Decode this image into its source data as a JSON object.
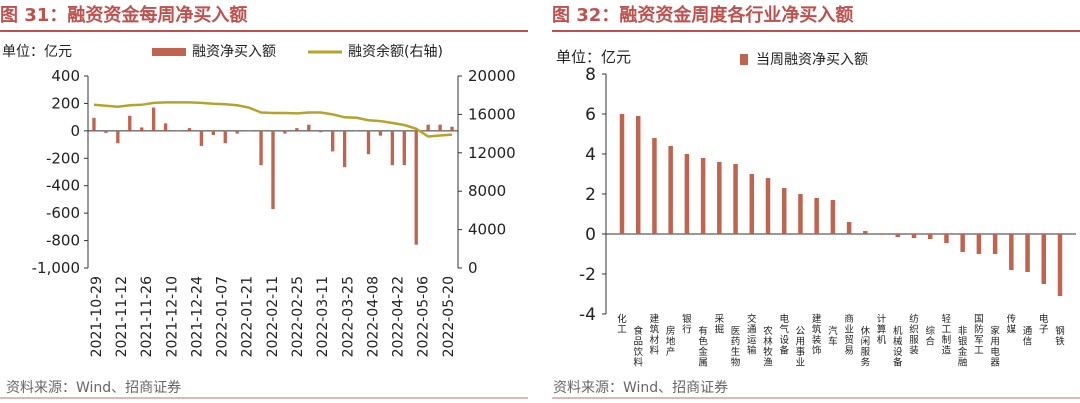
{
  "left_panel": {
    "title": "图 31：融资资金每周净买入额",
    "source": "资料来源：Wind、招商证券"
  },
  "right_panel": {
    "title": "图 32：融资资金周度各行业净买入额",
    "source": "资料来源：Wind、招商证券"
  },
  "colors": {
    "bar": "#c0644f",
    "line": "#b8a32a",
    "accent": "#c0504d"
  },
  "chart_data": [
    {
      "type": "bar+line",
      "unit_label": "单位：亿元",
      "legend": {
        "bar": "融资净买入额",
        "line": "融资余额(右轴)"
      },
      "ylim_left": [
        -1000,
        400
      ],
      "yticks_left": [
        "400",
        "200",
        "0",
        "-200",
        "-400",
        "-600",
        "-800",
        "-1,000"
      ],
      "ylim_right": [
        0,
        20000
      ],
      "yticks_right": [
        "20000",
        "16000",
        "12000",
        "8000",
        "4000",
        "0"
      ],
      "xtick_labels": [
        "2021-10-29",
        "2021-11-12",
        "2021-11-26",
        "2021-12-10",
        "2021-12-24",
        "2022-01-07",
        "2022-01-21",
        "2022-02-11",
        "2022-02-25",
        "2022-03-11",
        "2022-03-25",
        "2022-04-08",
        "2022-04-22",
        "2022-05-06",
        "2022-05-20"
      ],
      "bars": [
        95,
        -15,
        -90,
        110,
        25,
        170,
        55,
        0,
        20,
        -110,
        -30,
        -90,
        -20,
        0,
        -250,
        -570,
        -20,
        20,
        45,
        -10,
        -150,
        -265,
        0,
        -170,
        -35,
        -250,
        -250,
        -830,
        45,
        45,
        30
      ],
      "balance": [
        17000,
        16900,
        16800,
        16950,
        17000,
        17200,
        17250,
        17250,
        17250,
        17200,
        17100,
        17050,
        16950,
        16700,
        16200,
        16150,
        16150,
        16100,
        16200,
        16200,
        16000,
        15700,
        15650,
        15400,
        15300,
        15100,
        14900,
        14500,
        13700,
        13800,
        13900
      ]
    },
    {
      "type": "bar",
      "unit_label": "单位：亿元",
      "legend": "当周融资净买入额",
      "ylim": [
        -4,
        8
      ],
      "yticks": [
        "8",
        "6",
        "4",
        "2",
        "0",
        "-2",
        "-4"
      ],
      "categories": [
        "化工",
        "食品饮料",
        "建筑材料",
        "房地产",
        "银行",
        "有色金属",
        "采掘",
        "医药生物",
        "交通运输",
        "农林牧渔",
        "电气设备",
        "公用事业",
        "建筑装饰",
        "汽车",
        "商业贸易",
        "休闲服务",
        "计算机",
        "机械设备",
        "纺织服装",
        "综合",
        "轻工制造",
        "非银金融",
        "国防军工",
        "家用电器",
        "传媒",
        "通信",
        "电子",
        "钢铁"
      ],
      "values": [
        6.0,
        5.9,
        4.8,
        4.4,
        4.0,
        3.8,
        3.6,
        3.5,
        3.0,
        2.8,
        2.3,
        2.0,
        1.8,
        1.7,
        0.6,
        0.15,
        0.0,
        -0.15,
        -0.2,
        -0.25,
        -0.45,
        -0.9,
        -1.0,
        -1.0,
        -1.8,
        -1.9,
        -2.5,
        -3.1
      ]
    }
  ]
}
